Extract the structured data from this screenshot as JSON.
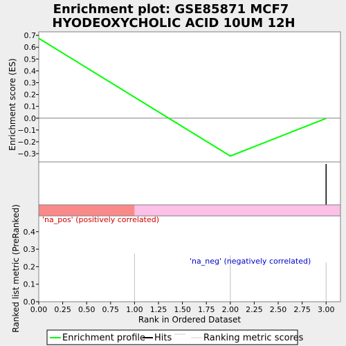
{
  "title_line1": "Enrichment plot: GSE85871 MCF7",
  "title_line2": "HYODEOXYCHOLIC ACID 10UM 12H",
  "chart_data": [
    {
      "type": "line",
      "panel": "enrichment",
      "ylabel": "Enrichment score (ES)",
      "ylim": [
        -0.37,
        0.73
      ],
      "yticks": [
        -0.3,
        -0.2,
        -0.1,
        0.0,
        0.1,
        0.2,
        0.3,
        0.4,
        0.5,
        0.6,
        0.7
      ],
      "ytick_labels": [
        "−0.3",
        "−0.2",
        "−0.1",
        "0.0",
        "0.1",
        "0.2",
        "0.3",
        "0.4",
        "0.5",
        "0.6",
        "0.7"
      ],
      "series": [
        {
          "name": "Enrichment profile",
          "x": [
            0,
            2,
            3
          ],
          "y": [
            0.675,
            -0.32,
            -0.002
          ],
          "color": "#00ff00"
        }
      ]
    },
    {
      "type": "scatter",
      "panel": "hits",
      "hits_x": [
        3
      ],
      "gradient": {
        "pos_color": "#fa8a8a",
        "neg_color": "#fdc0e6",
        "split_x": 1.0
      }
    },
    {
      "type": "bar",
      "panel": "ranked_list",
      "xlabel": "Rank in Ordered Dataset",
      "ylabel": "Ranked list metric (PreRanked)",
      "xlim": [
        0,
        3.15
      ],
      "ylim": [
        0,
        0.49
      ],
      "xticks": [
        0.0,
        0.25,
        0.5,
        0.75,
        1.0,
        1.25,
        1.5,
        1.75,
        2.0,
        2.25,
        2.5,
        2.75,
        3.0
      ],
      "xtick_labels": [
        "0.00",
        "0.25",
        "0.50",
        "0.75",
        "1.00",
        "1.25",
        "1.50",
        "1.75",
        "2.00",
        "2.25",
        "2.50",
        "2.75",
        "3.00"
      ],
      "yticks": [
        0.0,
        0.1,
        0.2,
        0.3,
        0.4
      ],
      "ytick_labels": [
        "0.0",
        "0.1",
        "0.2",
        "0.3",
        "0.4"
      ],
      "bars": [
        {
          "x": 1,
          "value": 0.275
        },
        {
          "x": 2,
          "value": 0.265
        },
        {
          "x": 3,
          "value": 0.225
        }
      ],
      "pos_label": "'na_pos' (positively correlated)",
      "neg_label": "'na_neg' (negatively correlated)",
      "pos_label_color": "#cc0000",
      "neg_label_color": "#0000cc"
    }
  ],
  "legend": {
    "items": [
      {
        "label": "Enrichment profile",
        "color": "#00ff00"
      },
      {
        "label": "Hits",
        "color": "#000000"
      },
      {
        "label": "Ranking metric scores",
        "color": "#cccccc"
      }
    ]
  }
}
